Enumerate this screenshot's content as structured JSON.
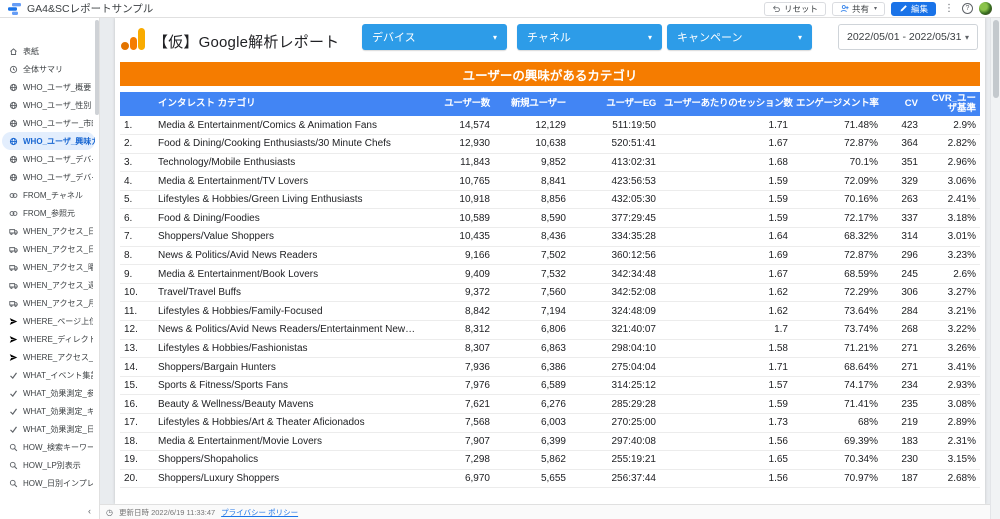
{
  "colors": {
    "filter_blue": "#2D9CE8",
    "table_header_blue": "#4285F4",
    "banner_orange": "#F57C00",
    "edit_blue": "#1A73E8",
    "selected_item_bg": "#E3EEFD",
    "selected_item_text": "#1967D2"
  },
  "topbar": {
    "app_title": "GA4&SCレポートサンプル",
    "reset_label": "リセット",
    "share_label": "共有",
    "edit_label": "編集"
  },
  "sidebar": {
    "items": [
      {
        "label": "表紙",
        "icon": "home-icon",
        "selected": false
      },
      {
        "label": "全体サマリ",
        "icon": "clock-icon",
        "selected": false
      },
      {
        "label": "WHO_ユーザ_概要",
        "icon": "globe-icon",
        "selected": false
      },
      {
        "label": "WHO_ユーザ_性別",
        "icon": "globe-icon",
        "selected": false
      },
      {
        "label": "WHO_ユーザー_市町村",
        "icon": "globe-icon",
        "selected": false
      },
      {
        "label": "WHO_ユーザ_興味カテ...",
        "icon": "globe-icon",
        "selected": true
      },
      {
        "label": "WHO_ユーザ_デバイス",
        "icon": "globe-icon",
        "selected": false
      },
      {
        "label": "WHO_ユーザ_デバイス...",
        "icon": "globe-icon",
        "selected": false
      },
      {
        "label": "FROM_チャネル",
        "icon": "link-icon",
        "selected": false
      },
      {
        "label": "FROM_参照元",
        "icon": "link-icon",
        "selected": false
      },
      {
        "label": "WHEN_アクセス_日別",
        "icon": "truck-icon",
        "selected": false
      },
      {
        "label": "WHEN_アクセス_日別...",
        "icon": "truck-icon",
        "selected": false
      },
      {
        "label": "WHEN_アクセス_曜日別",
        "icon": "truck-icon",
        "selected": false
      },
      {
        "label": "WHEN_アクセス_週推移",
        "icon": "truck-icon",
        "selected": false
      },
      {
        "label": "WHEN_アクセス_月推移",
        "icon": "truck-icon",
        "selected": false
      },
      {
        "label": "WHERE_ページ上位",
        "icon": "plane-icon",
        "selected": false
      },
      {
        "label": "WHERE_ディレクトリ...",
        "icon": "plane-icon",
        "selected": false
      },
      {
        "label": "WHERE_アクセス_LP",
        "icon": "plane-icon",
        "selected": false
      },
      {
        "label": "WHAT_イベント集計",
        "icon": "check-icon",
        "selected": false
      },
      {
        "label": "WHAT_効果測定_参照...",
        "icon": "check-icon",
        "selected": false
      },
      {
        "label": "WHAT_効果測定_キャ...",
        "icon": "check-icon",
        "selected": false
      },
      {
        "label": "WHAT_効果測定_日別",
        "icon": "check-icon",
        "selected": false
      },
      {
        "label": "HOW_検索キーワード",
        "icon": "search-icon",
        "selected": false
      },
      {
        "label": "HOW_LP別表示",
        "icon": "search-icon",
        "selected": false
      },
      {
        "label": "HOW_日別インプレッ...",
        "icon": "search-icon",
        "selected": false
      }
    ]
  },
  "report": {
    "title": "【仮】Google解析レポート",
    "filters": [
      {
        "label": "デバイス"
      },
      {
        "label": "チャネル"
      },
      {
        "label": "キャンペーン"
      }
    ],
    "date_range": "2022/05/01 - 2022/05/31",
    "banner": "ユーザーの興味があるカテゴリ",
    "footer": {
      "updated": "更新日時 2022/6/19 11:33:47",
      "privacy": "プライバシー ポリシー"
    }
  },
  "table": {
    "columns": [
      "インタレスト カテゴリ",
      "ユーザー数",
      "新規ユーザー",
      "ユーザーEG",
      "ユーザーあたりのセッション数",
      "エンゲージメント率",
      "CV",
      "CVR_ユーザ基準"
    ],
    "rows": [
      [
        "Media & Entertainment/Comics & Animation Fans",
        "14,574",
        "12,129",
        "511:19:50",
        "1.71",
        "71.48%",
        "423",
        "2.9%"
      ],
      [
        "Food & Dining/Cooking Enthusiasts/30 Minute Chefs",
        "12,930",
        "10,638",
        "520:51:41",
        "1.67",
        "72.87%",
        "364",
        "2.82%"
      ],
      [
        "Technology/Mobile Enthusiasts",
        "11,843",
        "9,852",
        "413:02:31",
        "1.68",
        "70.1%",
        "351",
        "2.96%"
      ],
      [
        "Media & Entertainment/TV Lovers",
        "10,765",
        "8,841",
        "423:56:53",
        "1.59",
        "72.09%",
        "329",
        "3.06%"
      ],
      [
        "Lifestyles & Hobbies/Green Living Enthusiasts",
        "10,918",
        "8,856",
        "432:05:30",
        "1.59",
        "70.16%",
        "263",
        "2.41%"
      ],
      [
        "Food & Dining/Foodies",
        "10,589",
        "8,590",
        "377:29:45",
        "1.59",
        "72.17%",
        "337",
        "3.18%"
      ],
      [
        "Shoppers/Value Shoppers",
        "10,435",
        "8,436",
        "334:35:28",
        "1.64",
        "68.32%",
        "314",
        "3.01%"
      ],
      [
        "News & Politics/Avid News Readers",
        "9,166",
        "7,502",
        "360:12:56",
        "1.69",
        "72.87%",
        "296",
        "3.23%"
      ],
      [
        "Media & Entertainment/Book Lovers",
        "9,409",
        "7,532",
        "342:34:48",
        "1.67",
        "68.59%",
        "245",
        "2.6%"
      ],
      [
        "Travel/Travel Buffs",
        "9,372",
        "7,560",
        "342:52:08",
        "1.62",
        "72.29%",
        "306",
        "3.27%"
      ],
      [
        "Lifestyles & Hobbies/Family-Focused",
        "8,842",
        "7,194",
        "324:48:09",
        "1.62",
        "73.64%",
        "284",
        "3.21%"
      ],
      [
        "News & Politics/Avid News Readers/Entertainment News E...",
        "8,312",
        "6,806",
        "321:40:07",
        "1.7",
        "73.74%",
        "268",
        "3.22%"
      ],
      [
        "Lifestyles & Hobbies/Fashionistas",
        "8,307",
        "6,863",
        "298:04:10",
        "1.58",
        "71.21%",
        "271",
        "3.26%"
      ],
      [
        "Shoppers/Bargain Hunters",
        "7,936",
        "6,386",
        "275:04:04",
        "1.71",
        "68.64%",
        "271",
        "3.41%"
      ],
      [
        "Sports & Fitness/Sports Fans",
        "7,976",
        "6,589",
        "314:25:12",
        "1.57",
        "74.17%",
        "234",
        "2.93%"
      ],
      [
        "Beauty & Wellness/Beauty Mavens",
        "7,621",
        "6,276",
        "285:29:28",
        "1.59",
        "71.41%",
        "235",
        "3.08%"
      ],
      [
        "Lifestyles & Hobbies/Art & Theater Aficionados",
        "7,568",
        "6,003",
        "270:25:00",
        "1.73",
        "68%",
        "219",
        "2.89%"
      ],
      [
        "Media & Entertainment/Movie Lovers",
        "7,907",
        "6,399",
        "297:40:08",
        "1.56",
        "69.39%",
        "183",
        "2.31%"
      ],
      [
        "Shoppers/Shopaholics",
        "7,298",
        "5,862",
        "255:19:21",
        "1.65",
        "70.34%",
        "230",
        "3.15%"
      ],
      [
        "Shoppers/Luxury Shoppers",
        "6,970",
        "5,655",
        "256:37:44",
        "1.56",
        "70.97%",
        "187",
        "2.68%"
      ]
    ]
  }
}
